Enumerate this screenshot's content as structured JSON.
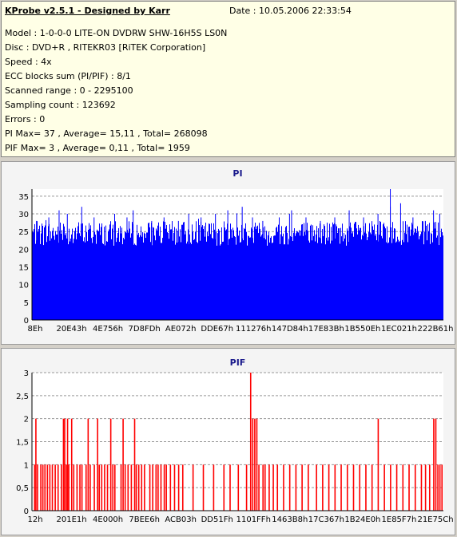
{
  "header": {
    "title": "KProbe v2.5.1 - Designed by Karr",
    "date": "Date : 10.05.2006 22:33:54",
    "lines": [
      "Model : 1-0-0-0 LITE-ON DVDRW SHW-16H5S  LS0N",
      "Disc : DVD+R , RITEKR03 [RiTEK Corporation]",
      "Speed : 4x",
      "ECC blocks sum (PI/PIF) : 8/1",
      "Scanned range : 0 - 2295100",
      "Sampling count : 123692",
      "Errors : 0",
      "PI Max= 37 , Average= 15,11 , Total= 268098",
      "PIF Max= 3 , Average= 0,11 , Total= 1959"
    ]
  },
  "chart_data": [
    {
      "type": "bar",
      "title": "PI",
      "color": "#0000ff",
      "ylim": [
        0,
        37
      ],
      "yticks": [
        "0",
        "5",
        "10",
        "15",
        "20",
        "25",
        "30",
        "35"
      ],
      "yvalues": [
        0,
        5,
        10,
        15,
        20,
        25,
        30,
        35
      ],
      "xticks": [
        "8Eh",
        "20E43h",
        "4E756h",
        "7D8FDh",
        "AE072h",
        "DDE67h",
        "111276h",
        "147D84h",
        "17E83Bh",
        "1B550Eh",
        "1EC021h",
        "222B61h"
      ],
      "grid": true,
      "series": [
        {
          "baseline": [
            21,
            28
          ],
          "spikes": [
            [
              0.01,
              28
            ],
            [
              0.04,
              29
            ],
            [
              0.065,
              31
            ],
            [
              0.085,
              30
            ],
            [
              0.12,
              32
            ],
            [
              0.15,
              29
            ],
            [
              0.2,
              30
            ],
            [
              0.23,
              29
            ],
            [
              0.245,
              31
            ],
            [
              0.29,
              28
            ],
            [
              0.32,
              29
            ],
            [
              0.355,
              28
            ],
            [
              0.38,
              30
            ],
            [
              0.41,
              29
            ],
            [
              0.445,
              30
            ],
            [
              0.475,
              31
            ],
            [
              0.51,
              32
            ],
            [
              0.535,
              29
            ],
            [
              0.56,
              28
            ],
            [
              0.6,
              29
            ],
            [
              0.625,
              30
            ],
            [
              0.63,
              31
            ],
            [
              0.665,
              29
            ],
            [
              0.7,
              28
            ],
            [
              0.735,
              29
            ],
            [
              0.77,
              31
            ],
            [
              0.805,
              29
            ],
            [
              0.84,
              30
            ],
            [
              0.87,
              32
            ],
            [
              0.87,
              37
            ],
            [
              0.895,
              33
            ],
            [
              0.925,
              29
            ],
            [
              0.955,
              28
            ],
            [
              0.975,
              31
            ],
            [
              0.99,
              30
            ]
          ]
        }
      ]
    },
    {
      "type": "bar",
      "title": "PIF",
      "color": "#ff0000",
      "ylim": [
        0,
        3
      ],
      "yticks": [
        "0",
        "0,5",
        "1",
        "1,5",
        "2",
        "2,5",
        "3"
      ],
      "yvalues": [
        0,
        0.5,
        1,
        1.5,
        2,
        2.5,
        3
      ],
      "xticks": [
        "12h",
        "201E1h",
        "4E000h",
        "7BEE6h",
        "ACB03h",
        "DD51Fh",
        "1101FFh",
        "1463B8h",
        "17C367h",
        "1B24E0h",
        "1E85F7h",
        "21E75Ch"
      ],
      "grid": true,
      "series": [
        {
          "bars": [
            [
              0.005,
              1
            ],
            [
              0.008,
              2
            ],
            [
              0.012,
              1
            ],
            [
              0.02,
              1
            ],
            [
              0.025,
              1
            ],
            [
              0.03,
              1
            ],
            [
              0.036,
              1
            ],
            [
              0.042,
              1
            ],
            [
              0.048,
              1
            ],
            [
              0.055,
              1
            ],
            [
              0.062,
              1
            ],
            [
              0.07,
              1
            ],
            [
              0.075,
              2
            ],
            [
              0.078,
              2
            ],
            [
              0.082,
              1
            ],
            [
              0.085,
              2
            ],
            [
              0.088,
              1
            ],
            [
              0.095,
              2
            ],
            [
              0.1,
              1
            ],
            [
              0.108,
              1
            ],
            [
              0.115,
              1
            ],
            [
              0.12,
              1
            ],
            [
              0.13,
              1
            ],
            [
              0.135,
              2
            ],
            [
              0.14,
              1
            ],
            [
              0.15,
              1
            ],
            [
              0.158,
              2
            ],
            [
              0.162,
              1
            ],
            [
              0.168,
              1
            ],
            [
              0.175,
              1
            ],
            [
              0.182,
              1
            ],
            [
              0.19,
              2
            ],
            [
              0.195,
              1
            ],
            [
              0.2,
              1
            ],
            [
              0.215,
              1
            ],
            [
              0.22,
              2
            ],
            [
              0.225,
              1
            ],
            [
              0.232,
              1
            ],
            [
              0.24,
              1
            ],
            [
              0.248,
              2
            ],
            [
              0.252,
              1
            ],
            [
              0.258,
              1
            ],
            [
              0.265,
              1
            ],
            [
              0.272,
              1
            ],
            [
              0.285,
              1
            ],
            [
              0.292,
              1
            ],
            [
              0.3,
              1
            ],
            [
              0.305,
              1
            ],
            [
              0.312,
              1
            ],
            [
              0.32,
              1
            ],
            [
              0.325,
              1
            ],
            [
              0.335,
              1
            ],
            [
              0.345,
              1
            ],
            [
              0.355,
              1
            ],
            [
              0.365,
              1
            ],
            [
              0.39,
              1
            ],
            [
              0.415,
              1
            ],
            [
              0.44,
              1
            ],
            [
              0.465,
              1
            ],
            [
              0.48,
              1
            ],
            [
              0.5,
              1
            ],
            [
              0.52,
              1
            ],
            [
              0.53,
              3
            ],
            [
              0.535,
              2
            ],
            [
              0.54,
              2
            ],
            [
              0.545,
              2
            ],
            [
              0.55,
              1
            ],
            [
              0.56,
              1
            ],
            [
              0.565,
              1
            ],
            [
              0.575,
              1
            ],
            [
              0.585,
              1
            ],
            [
              0.595,
              1
            ],
            [
              0.61,
              1
            ],
            [
              0.625,
              1
            ],
            [
              0.64,
              1
            ],
            [
              0.655,
              1
            ],
            [
              0.67,
              1
            ],
            [
              0.69,
              1
            ],
            [
              0.705,
              1
            ],
            [
              0.72,
              1
            ],
            [
              0.735,
              1
            ],
            [
              0.75,
              1
            ],
            [
              0.765,
              1
            ],
            [
              0.78,
              1
            ],
            [
              0.795,
              1
            ],
            [
              0.81,
              1
            ],
            [
              0.825,
              1
            ],
            [
              0.84,
              2
            ],
            [
              0.855,
              1
            ],
            [
              0.87,
              1
            ],
            [
              0.885,
              1
            ],
            [
              0.9,
              1
            ],
            [
              0.915,
              1
            ],
            [
              0.93,
              1
            ],
            [
              0.945,
              1
            ],
            [
              0.955,
              1
            ],
            [
              0.965,
              1
            ],
            [
              0.975,
              2
            ],
            [
              0.98,
              2
            ],
            [
              0.985,
              1
            ],
            [
              0.99,
              1
            ],
            [
              0.995,
              1
            ]
          ]
        }
      ]
    }
  ]
}
